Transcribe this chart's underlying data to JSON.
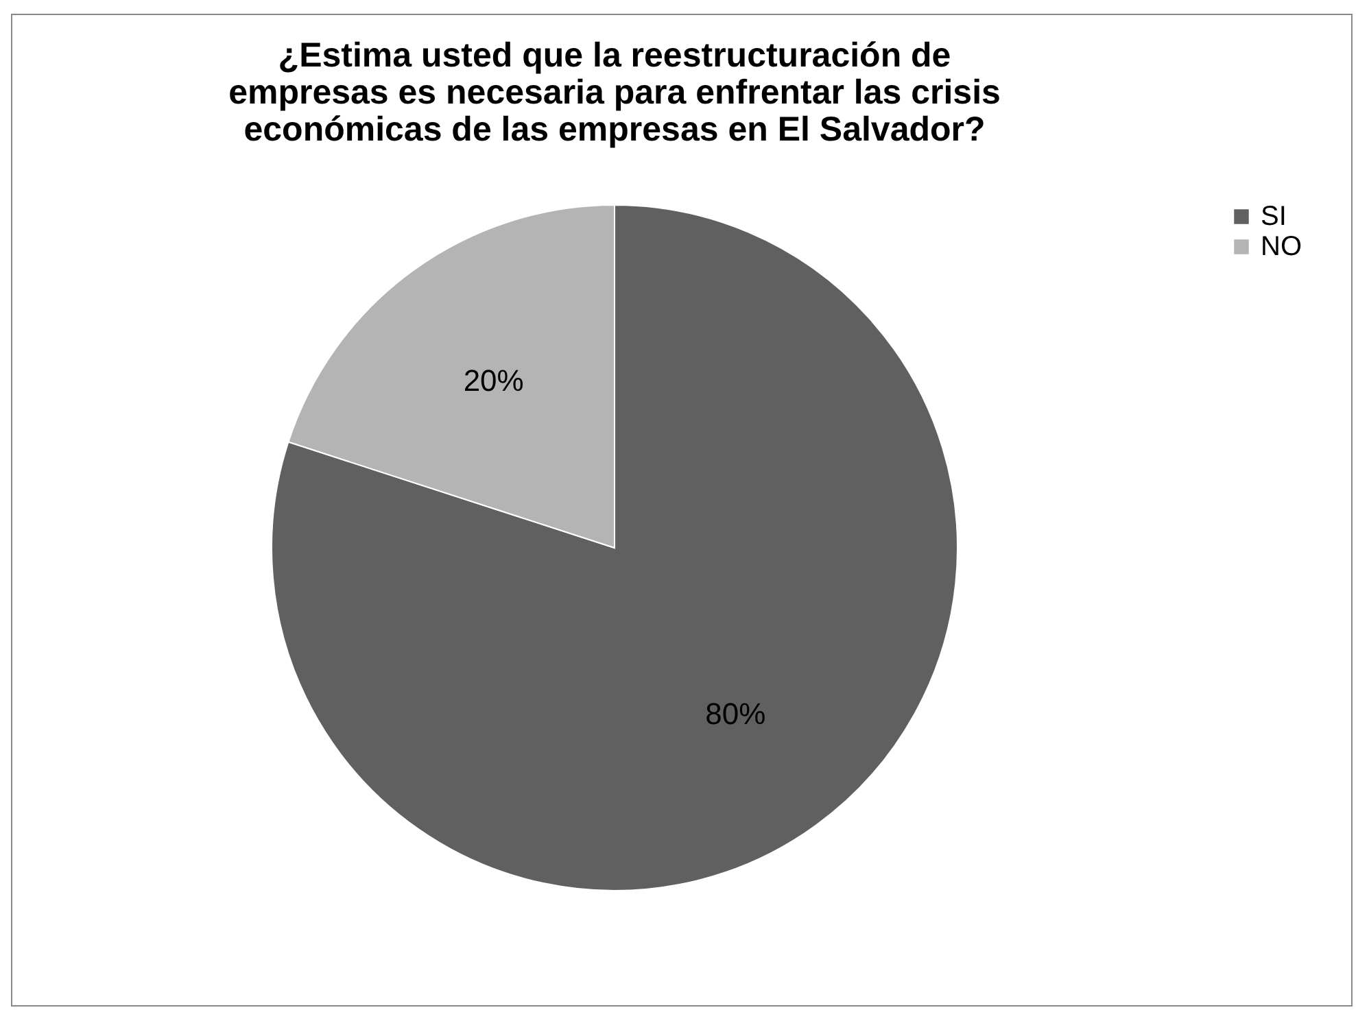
{
  "chart_data": {
    "type": "pie",
    "title": "¿Estima usted que la reestructuración de empresas es necesaria para enfrentar las crisis económicas de las empresas en El Salvador?",
    "categories": [
      "SI",
      "NO"
    ],
    "values": [
      80,
      20
    ],
    "colors": [
      "#606060",
      "#b4b4b4"
    ],
    "value_labels": [
      "80%",
      "20%"
    ],
    "legend": "right"
  }
}
